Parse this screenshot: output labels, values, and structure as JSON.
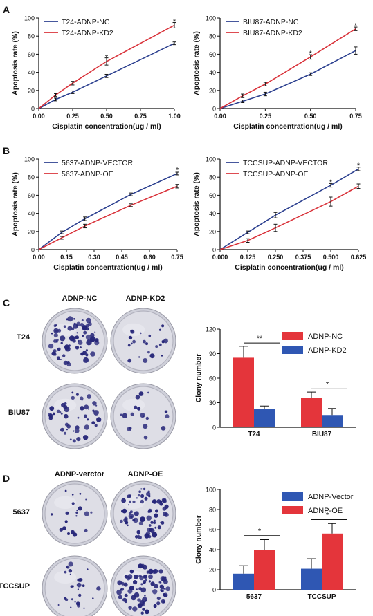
{
  "panels": {
    "A": "A",
    "B": "B",
    "C": "C",
    "D": "D"
  },
  "colors": {
    "blue": "#2b3f8f",
    "red": "#d9323a",
    "bar_red": "#e4353b",
    "bar_blue": "#2f57b3",
    "plate_bg": "#dedee6",
    "colony": "#262679"
  },
  "plates": {
    "C": {
      "col_headers": [
        "ADNP-NC",
        "ADNP-KD2"
      ],
      "row_labels": [
        "T24",
        "BIU87"
      ]
    },
    "D": {
      "col_headers": [
        "ADNP-verctor",
        "ADNP-OE"
      ],
      "row_labels": [
        "5637",
        "TCCSUP"
      ]
    }
  },
  "chart_data": [
    {
      "id": "A1",
      "type": "line",
      "xlabel": "Cisplatin concentration(ug / ml)",
      "ylabel": "Apoptosis rate (%)",
      "xlim": [
        0,
        1.0
      ],
      "ylim": [
        0,
        100
      ],
      "xticks": [
        "0.00",
        "0.25",
        "0.50",
        "0.75",
        "1.00"
      ],
      "yticks": [
        "0",
        "20",
        "40",
        "60",
        "80",
        "100"
      ],
      "legend": "top-left",
      "series": [
        {
          "name": "T24-ADNP-NC",
          "color": "blue",
          "x": [
            0,
            0.125,
            0.25,
            0.5,
            1.0
          ],
          "y": [
            0,
            10,
            18,
            36,
            72
          ],
          "err": [
            0,
            1.5,
            1.5,
            1.8,
            1.5
          ]
        },
        {
          "name": "T24-ADNP-KD2",
          "color": "red",
          "x": [
            0,
            0.125,
            0.25,
            0.5,
            1.0
          ],
          "y": [
            0,
            15,
            28,
            52,
            92
          ],
          "err": [
            0,
            1.5,
            2,
            4,
            3
          ]
        }
      ],
      "annotations": [
        {
          "x": 0.5,
          "y": 57,
          "text": "*"
        },
        {
          "x": 1.0,
          "y": 96,
          "text": "*"
        }
      ]
    },
    {
      "id": "A2",
      "type": "line",
      "xlabel": "Cisplatin concentration(ug / ml)",
      "ylabel": "Apoptosis rate (%)",
      "xlim": [
        0,
        0.75
      ],
      "ylim": [
        0,
        100
      ],
      "xticks": [
        "0.00",
        "0.25",
        "0.50",
        "0.75"
      ],
      "yticks": [
        "0",
        "20",
        "40",
        "60",
        "80",
        "100"
      ],
      "legend": "top-left",
      "series": [
        {
          "name": "BIU87-ADNP-NC",
          "color": "blue",
          "x": [
            0,
            0.125,
            0.25,
            0.5,
            0.75
          ],
          "y": [
            0,
            8,
            16,
            38,
            64
          ],
          "err": [
            0,
            1.5,
            2,
            1.5,
            4
          ]
        },
        {
          "name": "BIU87-ADNP-KD2",
          "color": "red",
          "x": [
            0,
            0.125,
            0.25,
            0.5,
            0.75
          ],
          "y": [
            0,
            14,
            27,
            57,
            88
          ],
          "err": [
            0,
            2,
            2,
            2.5,
            2
          ]
        }
      ],
      "annotations": [
        {
          "x": 0.5,
          "y": 61,
          "text": "*"
        },
        {
          "x": 0.75,
          "y": 92,
          "text": "*"
        }
      ]
    },
    {
      "id": "B1",
      "type": "line",
      "xlabel": "Cisplatin concentration(ug / ml)",
      "ylabel": "Apoptosis rate (%)",
      "xlim": [
        0,
        0.75
      ],
      "ylim": [
        0,
        100
      ],
      "xticks": [
        "0.00",
        "0.15",
        "0.30",
        "0.45",
        "0.60",
        "0.75"
      ],
      "yticks": [
        "0",
        "20",
        "40",
        "60",
        "80",
        "100"
      ],
      "legend": "top-left",
      "series": [
        {
          "name": "5637-ADNP-VECTOR",
          "color": "blue",
          "x": [
            0,
            0.125,
            0.25,
            0.5,
            0.75
          ],
          "y": [
            0,
            19,
            34,
            61,
            84
          ],
          "err": [
            0,
            1.5,
            2,
            1.5,
            1.5
          ]
        },
        {
          "name": "5637-ADNP-OE",
          "color": "red",
          "x": [
            0,
            0.125,
            0.25,
            0.5,
            0.75
          ],
          "y": [
            0,
            13,
            26,
            49,
            70
          ],
          "err": [
            0,
            1.5,
            2,
            1.5,
            2
          ]
        }
      ],
      "annotations": [
        {
          "x": 0.75,
          "y": 88,
          "text": "*"
        }
      ]
    },
    {
      "id": "B2",
      "type": "line",
      "xlabel": "Cisplatin concentration(ug / ml)",
      "ylabel": "Apoptosis rate (%)",
      "xlim": [
        0,
        0.625
      ],
      "ylim": [
        0,
        100
      ],
      "xticks": [
        "0.000",
        "0.125",
        "0.250",
        "0.375",
        "0.500",
        "0.625"
      ],
      "yticks": [
        "0",
        "20",
        "40",
        "60",
        "80",
        "100"
      ],
      "legend": "top-left",
      "series": [
        {
          "name": "TCCSUP-ADNP-VECTOR",
          "color": "blue",
          "x": [
            0,
            0.125,
            0.25,
            0.5,
            0.625
          ],
          "y": [
            0,
            19,
            38,
            71,
            89
          ],
          "err": [
            0,
            1.5,
            3,
            2,
            2
          ]
        },
        {
          "name": "TCCSUP-ADNP-OE",
          "color": "red",
          "x": [
            0,
            0.125,
            0.25,
            0.5,
            0.625
          ],
          "y": [
            0,
            10,
            24,
            53,
            70
          ],
          "err": [
            0,
            2,
            4,
            5,
            2.5
          ]
        }
      ],
      "annotations": [
        {
          "x": 0.5,
          "y": 75,
          "text": "*"
        },
        {
          "x": 0.625,
          "y": 93,
          "text": "*"
        }
      ]
    },
    {
      "id": "C_bar",
      "type": "bar",
      "categories": [
        "T24",
        "BIU87"
      ],
      "ylabel": "Clony number",
      "ylim": [
        0,
        120
      ],
      "yticks": [
        "0",
        "30",
        "60",
        "90",
        "120"
      ],
      "legend": "top-right",
      "series": [
        {
          "name": "ADNP-NC",
          "color": "bar_red",
          "values": [
            85,
            36
          ],
          "err": [
            14,
            7
          ]
        },
        {
          "name": "ADNP-KD2",
          "color": "bar_blue",
          "values": [
            22,
            15
          ],
          "err": [
            4,
            8
          ]
        }
      ],
      "annotations": [
        {
          "category": "T24",
          "y": 103,
          "text": "**"
        },
        {
          "category": "BIU87",
          "y": 47,
          "text": "*"
        }
      ]
    },
    {
      "id": "D_bar",
      "type": "bar",
      "categories": [
        "5637",
        "TCCSUP"
      ],
      "ylabel": "Clony number",
      "ylim": [
        0,
        100
      ],
      "yticks": [
        "0",
        "20",
        "40",
        "60",
        "80",
        "100"
      ],
      "legend": "top-right",
      "series": [
        {
          "name": "ADNP-Vector",
          "color": "bar_blue",
          "values": [
            16,
            21
          ],
          "err": [
            8,
            10
          ]
        },
        {
          "name": "ADNP-OE",
          "color": "bar_red",
          "values": [
            40,
            56
          ],
          "err": [
            10,
            10
          ]
        }
      ],
      "annotations": [
        {
          "category": "5637",
          "y": 54,
          "text": "*"
        },
        {
          "category": "TCCSUP",
          "y": 70,
          "text": "*"
        }
      ]
    }
  ]
}
